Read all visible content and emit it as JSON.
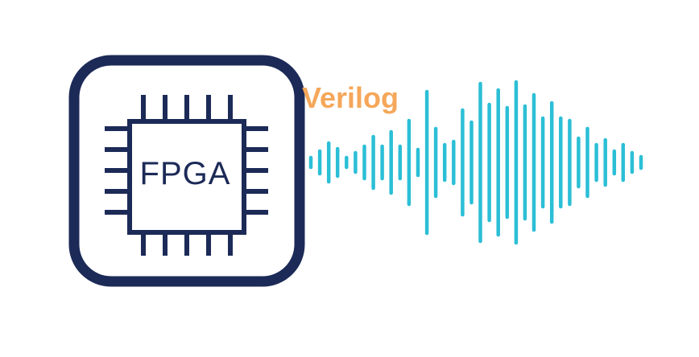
{
  "chip": {
    "label": "FPGA",
    "icon": "fpga-chip-icon",
    "frame_color": "#1c2a57"
  },
  "wave": {
    "label": "Verilog",
    "label_color": "#f5a75a",
    "bar_color": "#2bbfd6",
    "icon": "sound-wave-icon",
    "amplitudes": [
      0.06,
      0.14,
      0.24,
      0.17,
      0.06,
      0.12,
      0.2,
      0.32,
      0.2,
      0.38,
      0.2,
      0.52,
      0.16,
      0.88,
      0.42,
      0.22,
      0.26,
      0.65,
      0.5,
      0.98,
      0.72,
      0.9,
      0.68,
      1.0,
      0.7,
      0.84,
      0.55,
      0.74,
      0.55,
      0.52,
      0.3,
      0.42,
      0.22,
      0.28,
      0.14,
      0.22,
      0.12,
      0.07
    ]
  }
}
